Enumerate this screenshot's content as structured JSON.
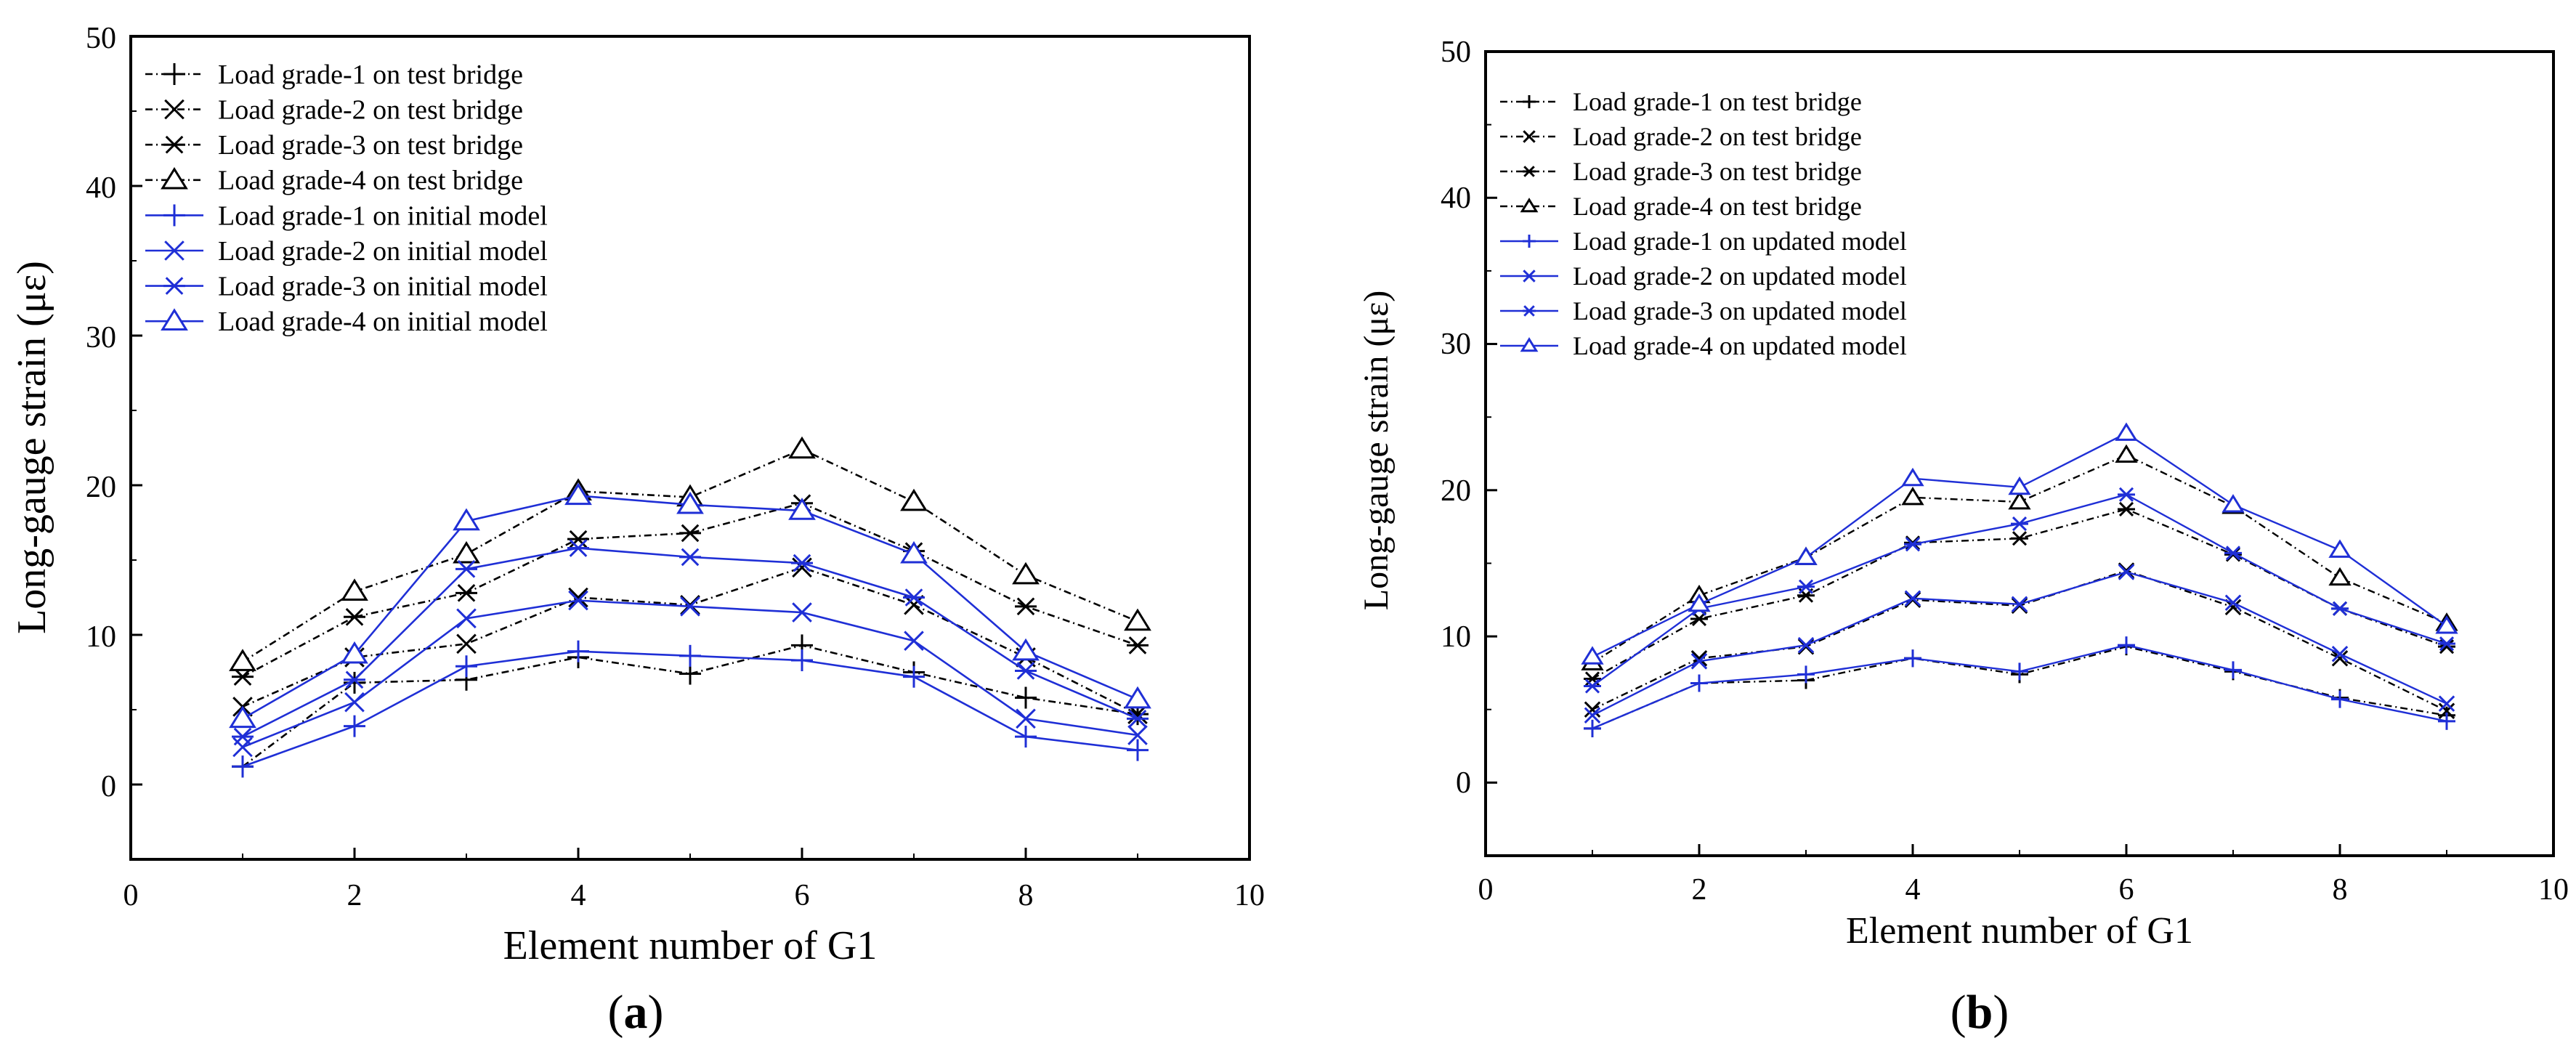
{
  "chart_data": [
    {
      "type": "line",
      "panel_label": "(a)",
      "panel_letter": "a",
      "xlabel": "Element number of G1",
      "ylabel": "Long-gauge strain (με)",
      "xlim": [
        0,
        10
      ],
      "ylim": [
        -5,
        50
      ],
      "xticks": [
        0,
        2,
        4,
        6,
        8,
        10
      ],
      "yticks": [
        0,
        10,
        20,
        30,
        40,
        50
      ],
      "x": [
        1,
        2,
        3,
        4,
        5,
        6,
        7,
        8,
        9
      ],
      "series": [
        {
          "name": "Load grade-1 on test bridge",
          "color": "#000000",
          "dash": "dashdot",
          "marker": "plus",
          "values": [
            1.2,
            6.8,
            7.0,
            8.5,
            7.4,
            9.3,
            7.5,
            5.8,
            4.7
          ]
        },
        {
          "name": "Load grade-2 on test bridge",
          "color": "#000000",
          "dash": "dashdot",
          "marker": "x",
          "values": [
            5.2,
            8.5,
            9.4,
            12.5,
            12.0,
            14.5,
            12.0,
            8.5,
            4.7
          ]
        },
        {
          "name": "Load grade-3 on test bridge",
          "color": "#000000",
          "dash": "dashdot",
          "marker": "star",
          "values": [
            7.2,
            11.2,
            12.8,
            16.4,
            16.8,
            18.8,
            15.6,
            11.9,
            9.3
          ]
        },
        {
          "name": "Load grade-4 on test bridge",
          "color": "#000000",
          "dash": "dashdot",
          "marker": "triangle",
          "values": [
            8.2,
            12.9,
            15.4,
            19.6,
            19.2,
            22.4,
            18.9,
            14.0,
            10.9
          ]
        },
        {
          "name": "Load grade-1 on initial model",
          "color": "#1f2fd6",
          "dash": "solid",
          "marker": "plus",
          "values": [
            1.2,
            3.9,
            7.9,
            8.9,
            8.6,
            8.3,
            7.2,
            3.2,
            2.3
          ]
        },
        {
          "name": "Load grade-2 on initial model",
          "color": "#1f2fd6",
          "dash": "solid",
          "marker": "x",
          "values": [
            2.5,
            5.5,
            11.1,
            12.3,
            11.9,
            11.5,
            9.6,
            4.4,
            3.3
          ]
        },
        {
          "name": "Load grade-3 on initial model",
          "color": "#1f2fd6",
          "dash": "solid",
          "marker": "star",
          "values": [
            3.2,
            7.0,
            14.4,
            15.8,
            15.2,
            14.8,
            12.5,
            7.6,
            4.4
          ]
        },
        {
          "name": "Load grade-4 on initial model",
          "color": "#1f2fd6",
          "dash": "solid",
          "marker": "triangle",
          "values": [
            4.4,
            8.7,
            17.6,
            19.3,
            18.7,
            18.3,
            15.4,
            8.9,
            5.7
          ]
        }
      ]
    },
    {
      "type": "line",
      "panel_label": "(b)",
      "panel_letter": "b",
      "xlabel": "Element number of G1",
      "ylabel": "Long-gauge strain (με)",
      "xlim": [
        0,
        10
      ],
      "ylim": [
        -5,
        50
      ],
      "xticks": [
        0,
        2,
        4,
        6,
        8,
        10
      ],
      "yticks": [
        0,
        10,
        20,
        30,
        40,
        50
      ],
      "x": [
        1,
        2,
        3,
        4,
        5,
        6,
        7,
        8,
        9
      ],
      "series": [
        {
          "name": "Load grade-1 on test bridge",
          "color": "#000000",
          "dash": "dashdot",
          "marker": "plus",
          "values": [
            3.7,
            6.8,
            7.0,
            8.5,
            7.4,
            9.3,
            7.6,
            5.8,
            4.6
          ]
        },
        {
          "name": "Load grade-2 on test bridge",
          "color": "#000000",
          "dash": "dashdot",
          "marker": "x",
          "values": [
            5.0,
            8.5,
            9.3,
            12.5,
            12.1,
            14.5,
            12.0,
            8.5,
            4.9
          ]
        },
        {
          "name": "Load grade-3 on test bridge",
          "color": "#000000",
          "dash": "dashdot",
          "marker": "star",
          "values": [
            7.1,
            11.2,
            12.8,
            16.4,
            16.7,
            18.7,
            15.6,
            11.9,
            9.3
          ]
        },
        {
          "name": "Load grade-4 on test bridge",
          "color": "#000000",
          "dash": "dashdot",
          "marker": "triangle",
          "values": [
            8.2,
            12.8,
            15.4,
            19.5,
            19.2,
            22.4,
            18.9,
            14.0,
            10.9
          ]
        },
        {
          "name": "Load grade-1 on updated model",
          "color": "#1f2fd6",
          "dash": "solid",
          "marker": "plus",
          "values": [
            3.7,
            6.8,
            7.4,
            8.5,
            7.6,
            9.4,
            7.7,
            5.7,
            4.2
          ]
        },
        {
          "name": "Load grade-2 on updated model",
          "color": "#1f2fd6",
          "dash": "solid",
          "marker": "x",
          "values": [
            4.6,
            8.3,
            9.4,
            12.6,
            12.2,
            14.4,
            12.3,
            8.8,
            5.4
          ]
        },
        {
          "name": "Load grade-3 on updated model",
          "color": "#1f2fd6",
          "dash": "solid",
          "marker": "star",
          "values": [
            6.6,
            11.9,
            13.4,
            16.3,
            17.7,
            19.7,
            15.7,
            11.9,
            9.5
          ]
        },
        {
          "name": "Load grade-4 on updated model",
          "color": "#1f2fd6",
          "dash": "solid",
          "marker": "triangle",
          "values": [
            8.6,
            12.2,
            15.4,
            20.8,
            20.2,
            23.9,
            19.0,
            15.9,
            10.7
          ]
        }
      ]
    }
  ]
}
